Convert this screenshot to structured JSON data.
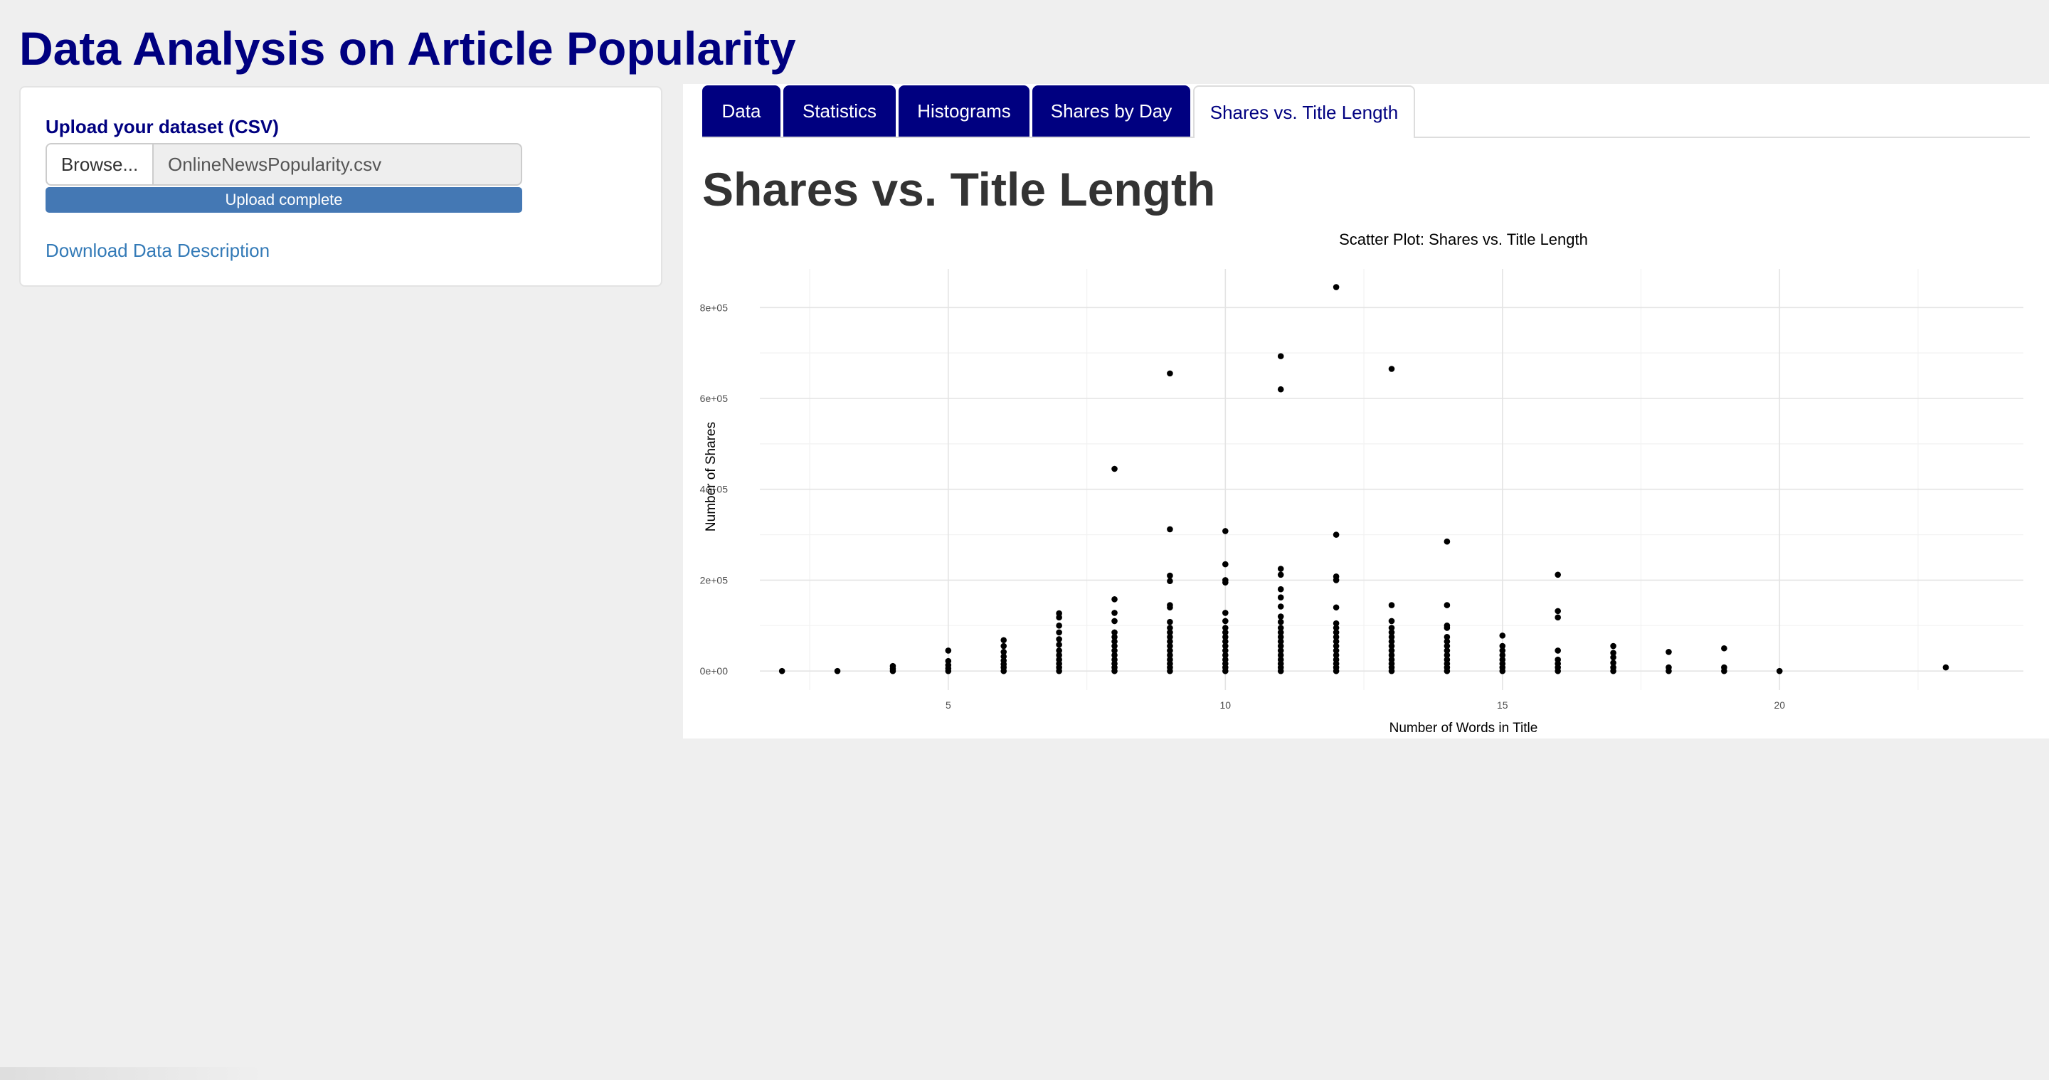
{
  "app": {
    "title": "Data Analysis on Article Popularity"
  },
  "sidebar": {
    "upload_label": "Upload your dataset (CSV)",
    "browse_label": "Browse...",
    "file_name": "OnlineNewsPopularity.csv",
    "progress_text": "Upload complete",
    "progress_fraction": 1.0,
    "download_link": "Download Data Description"
  },
  "tabs": [
    {
      "label": "Data",
      "active": false
    },
    {
      "label": "Statistics",
      "active": false
    },
    {
      "label": "Histograms",
      "active": false
    },
    {
      "label": "Shares by Day",
      "active": false
    },
    {
      "label": "Shares vs. Title Length",
      "active": true
    }
  ],
  "main": {
    "section_title": "Shares vs. Title Length"
  },
  "colors": {
    "title": "#000080",
    "tab_inactive_bg": "#000080",
    "progress_fill": "#4478b4",
    "link": "#337ab7",
    "point": "#000000"
  },
  "chart_data": {
    "type": "scatter",
    "title": "Scatter Plot: Shares vs. Title Length",
    "xlabel": "Number of Words in Title",
    "ylabel": "Number of Shares",
    "xlim": [
      1.6,
      24.4
    ],
    "ylim": [
      -42000,
      885000
    ],
    "x_ticks": [
      5,
      10,
      15,
      20
    ],
    "y_ticks": [
      0,
      200000,
      400000,
      600000,
      800000
    ],
    "y_tick_labels": [
      "0e+00",
      "2e+05",
      "4e+05",
      "6e+05",
      "8e+05"
    ],
    "grid": true,
    "legend": "none",
    "points": [
      [
        2,
        0
      ],
      [
        3,
        0
      ],
      [
        4,
        0
      ],
      [
        4,
        5000
      ],
      [
        4,
        11000
      ],
      [
        5,
        0
      ],
      [
        5,
        6000
      ],
      [
        5,
        13000
      ],
      [
        5,
        22000
      ],
      [
        5,
        45000
      ],
      [
        6,
        0
      ],
      [
        6,
        8000
      ],
      [
        6,
        15000
      ],
      [
        6,
        23000
      ],
      [
        6,
        32000
      ],
      [
        6,
        42000
      ],
      [
        6,
        55000
      ],
      [
        6,
        68000
      ],
      [
        7,
        0
      ],
      [
        7,
        8000
      ],
      [
        7,
        16000
      ],
      [
        7,
        25000
      ],
      [
        7,
        35000
      ],
      [
        7,
        45000
      ],
      [
        7,
        58000
      ],
      [
        7,
        70000
      ],
      [
        7,
        85000
      ],
      [
        7,
        100000
      ],
      [
        7,
        118000
      ],
      [
        7,
        127000
      ],
      [
        8,
        0
      ],
      [
        8,
        8000
      ],
      [
        8,
        16000
      ],
      [
        8,
        25000
      ],
      [
        8,
        35000
      ],
      [
        8,
        45000
      ],
      [
        8,
        55000
      ],
      [
        8,
        65000
      ],
      [
        8,
        75000
      ],
      [
        8,
        85000
      ],
      [
        8,
        110000
      ],
      [
        8,
        128000
      ],
      [
        8,
        158000
      ],
      [
        8,
        445000
      ],
      [
        9,
        0
      ],
      [
        9,
        8000
      ],
      [
        9,
        16000
      ],
      [
        9,
        25000
      ],
      [
        9,
        35000
      ],
      [
        9,
        45000
      ],
      [
        9,
        55000
      ],
      [
        9,
        65000
      ],
      [
        9,
        75000
      ],
      [
        9,
        85000
      ],
      [
        9,
        95000
      ],
      [
        9,
        108000
      ],
      [
        9,
        140000
      ],
      [
        9,
        145000
      ],
      [
        9,
        198000
      ],
      [
        9,
        210000
      ],
      [
        9,
        312000
      ],
      [
        9,
        655000
      ],
      [
        10,
        0
      ],
      [
        10,
        8000
      ],
      [
        10,
        16000
      ],
      [
        10,
        25000
      ],
      [
        10,
        35000
      ],
      [
        10,
        45000
      ],
      [
        10,
        55000
      ],
      [
        10,
        65000
      ],
      [
        10,
        75000
      ],
      [
        10,
        85000
      ],
      [
        10,
        95000
      ],
      [
        10,
        110000
      ],
      [
        10,
        128000
      ],
      [
        10,
        195000
      ],
      [
        10,
        200000
      ],
      [
        10,
        235000
      ],
      [
        10,
        308000
      ],
      [
        11,
        0
      ],
      [
        11,
        8000
      ],
      [
        11,
        16000
      ],
      [
        11,
        25000
      ],
      [
        11,
        35000
      ],
      [
        11,
        45000
      ],
      [
        11,
        55000
      ],
      [
        11,
        65000
      ],
      [
        11,
        75000
      ],
      [
        11,
        85000
      ],
      [
        11,
        95000
      ],
      [
        11,
        108000
      ],
      [
        11,
        120000
      ],
      [
        11,
        142000
      ],
      [
        11,
        162000
      ],
      [
        11,
        180000
      ],
      [
        11,
        212000
      ],
      [
        11,
        225000
      ],
      [
        11,
        620000
      ],
      [
        11,
        693000
      ],
      [
        12,
        0
      ],
      [
        12,
        8000
      ],
      [
        12,
        16000
      ],
      [
        12,
        25000
      ],
      [
        12,
        35000
      ],
      [
        12,
        45000
      ],
      [
        12,
        55000
      ],
      [
        12,
        65000
      ],
      [
        12,
        75000
      ],
      [
        12,
        85000
      ],
      [
        12,
        95000
      ],
      [
        12,
        105000
      ],
      [
        12,
        140000
      ],
      [
        12,
        200000
      ],
      [
        12,
        208000
      ],
      [
        12,
        300000
      ],
      [
        12,
        845000
      ],
      [
        13,
        0
      ],
      [
        13,
        8000
      ],
      [
        13,
        16000
      ],
      [
        13,
        25000
      ],
      [
        13,
        35000
      ],
      [
        13,
        45000
      ],
      [
        13,
        55000
      ],
      [
        13,
        65000
      ],
      [
        13,
        75000
      ],
      [
        13,
        85000
      ],
      [
        13,
        95000
      ],
      [
        13,
        110000
      ],
      [
        13,
        145000
      ],
      [
        13,
        665000
      ],
      [
        14,
        0
      ],
      [
        14,
        8000
      ],
      [
        14,
        16000
      ],
      [
        14,
        25000
      ],
      [
        14,
        35000
      ],
      [
        14,
        45000
      ],
      [
        14,
        55000
      ],
      [
        14,
        65000
      ],
      [
        14,
        75000
      ],
      [
        14,
        95000
      ],
      [
        14,
        100000
      ],
      [
        14,
        145000
      ],
      [
        14,
        285000
      ],
      [
        15,
        0
      ],
      [
        15,
        8000
      ],
      [
        15,
        16000
      ],
      [
        15,
        25000
      ],
      [
        15,
        35000
      ],
      [
        15,
        45000
      ],
      [
        15,
        55000
      ],
      [
        15,
        78000
      ],
      [
        16,
        0
      ],
      [
        16,
        8000
      ],
      [
        16,
        16000
      ],
      [
        16,
        25000
      ],
      [
        16,
        45000
      ],
      [
        16,
        118000
      ],
      [
        16,
        132000
      ],
      [
        16,
        212000
      ],
      [
        17,
        0
      ],
      [
        17,
        8000
      ],
      [
        17,
        18000
      ],
      [
        17,
        30000
      ],
      [
        17,
        40000
      ],
      [
        17,
        55000
      ],
      [
        18,
        0
      ],
      [
        18,
        8000
      ],
      [
        18,
        42000
      ],
      [
        19,
        0
      ],
      [
        19,
        8000
      ],
      [
        19,
        50000
      ],
      [
        20,
        0
      ],
      [
        23,
        8000
      ]
    ]
  }
}
